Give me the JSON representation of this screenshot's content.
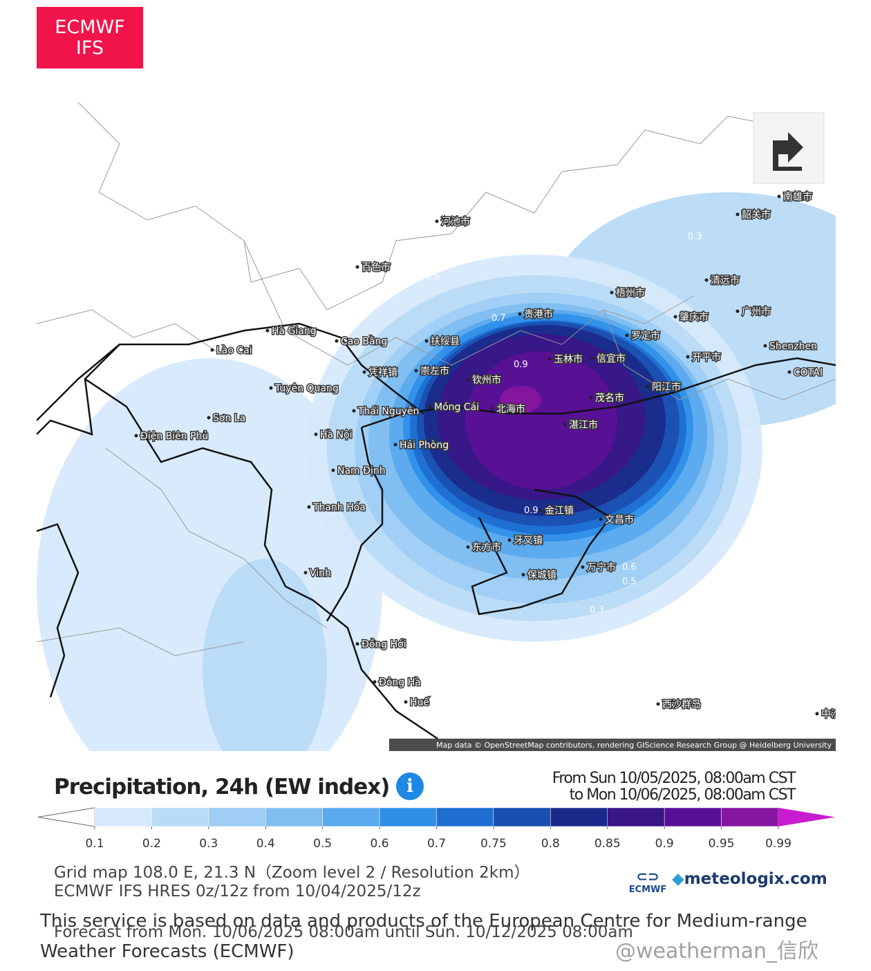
{
  "badge": [
    "ECMWF",
    "IFS"
  ],
  "map": {
    "places": [
      "Hà Giang",
      "Cao Bằng",
      "Lào Cai",
      "Tuyên Quang",
      "Thái Nguyên",
      "Móng Cái",
      "Hà Nội",
      "Hải Phòng",
      "Nam Định",
      "Thanh Hóa",
      "Vinh",
      "Đồng Hới",
      "Đông Hà",
      "Huế",
      "Điện Biên Phủ",
      "Sơn La",
      "Shenzhen",
      "COTAI",
      "湛江市",
      "北海市",
      "钦州市",
      "玉林市",
      "茂名市",
      "阳江市",
      "广州市",
      "贵港市",
      "梧州市",
      "百色市",
      "河池市",
      "文昌市",
      "东方市",
      "万宁市",
      "保城镇",
      "牙叉镇",
      "金江镇",
      "崇左市",
      "扶绥县",
      "凭祥镇",
      "信宜市",
      "罗定市",
      "肇庆市",
      "开平市",
      "清远市",
      "韶关市",
      "南雄市",
      "西沙群岛",
      "中沙群岛"
    ],
    "contour_labels": [
      "0.3",
      "0.5",
      "0.7",
      "0.9",
      "0.9",
      "0.6",
      "0.5",
      "0.3",
      "0.3"
    ],
    "attribution": "Map data © OpenStreetMap contributors, rendering GIScience Research Group @ Heidelberg University"
  },
  "title": "Precipitation, 24h (EW index)",
  "period": [
    "From Sun 10/05/2025, 08:00am CST",
    "to Mon 10/06/2025, 08:00am CST"
  ],
  "legend": {
    "ticks": [
      0.1,
      0.2,
      0.3,
      0.4,
      0.5,
      0.6,
      0.7,
      0.75,
      0.8,
      0.85,
      0.9,
      0.95,
      0.99
    ],
    "colors": [
      "#ffffff",
      "#d6e9fb",
      "#b9dbf7",
      "#9fcdf4",
      "#80bdf0",
      "#5aaaee",
      "#2f8fe8",
      "#1f6fd2",
      "#1a4fb0",
      "#1a2a8a",
      "#3a1688",
      "#5a1096",
      "#86169f",
      "#c81cd0"
    ]
  },
  "grid_info": "Grid map 108.0 E, 21.3 N（Zoom level 2 / Resolution 2km）",
  "model_info": "ECMWF IFS HRES 0z/12z from 10/04/2025/12z",
  "forecast_info": "Forecast from Mon. 10/06/2025 08:00am until Sun. 10/12/2025 08:00am",
  "disclaimer": "This service is based on data and products of the European Centre for Medium-range Weather Forecasts (ECMWF)",
  "logos": [
    "ECMWF",
    "meteologix.com"
  ],
  "watermark": "@weatherman_信欣"
}
